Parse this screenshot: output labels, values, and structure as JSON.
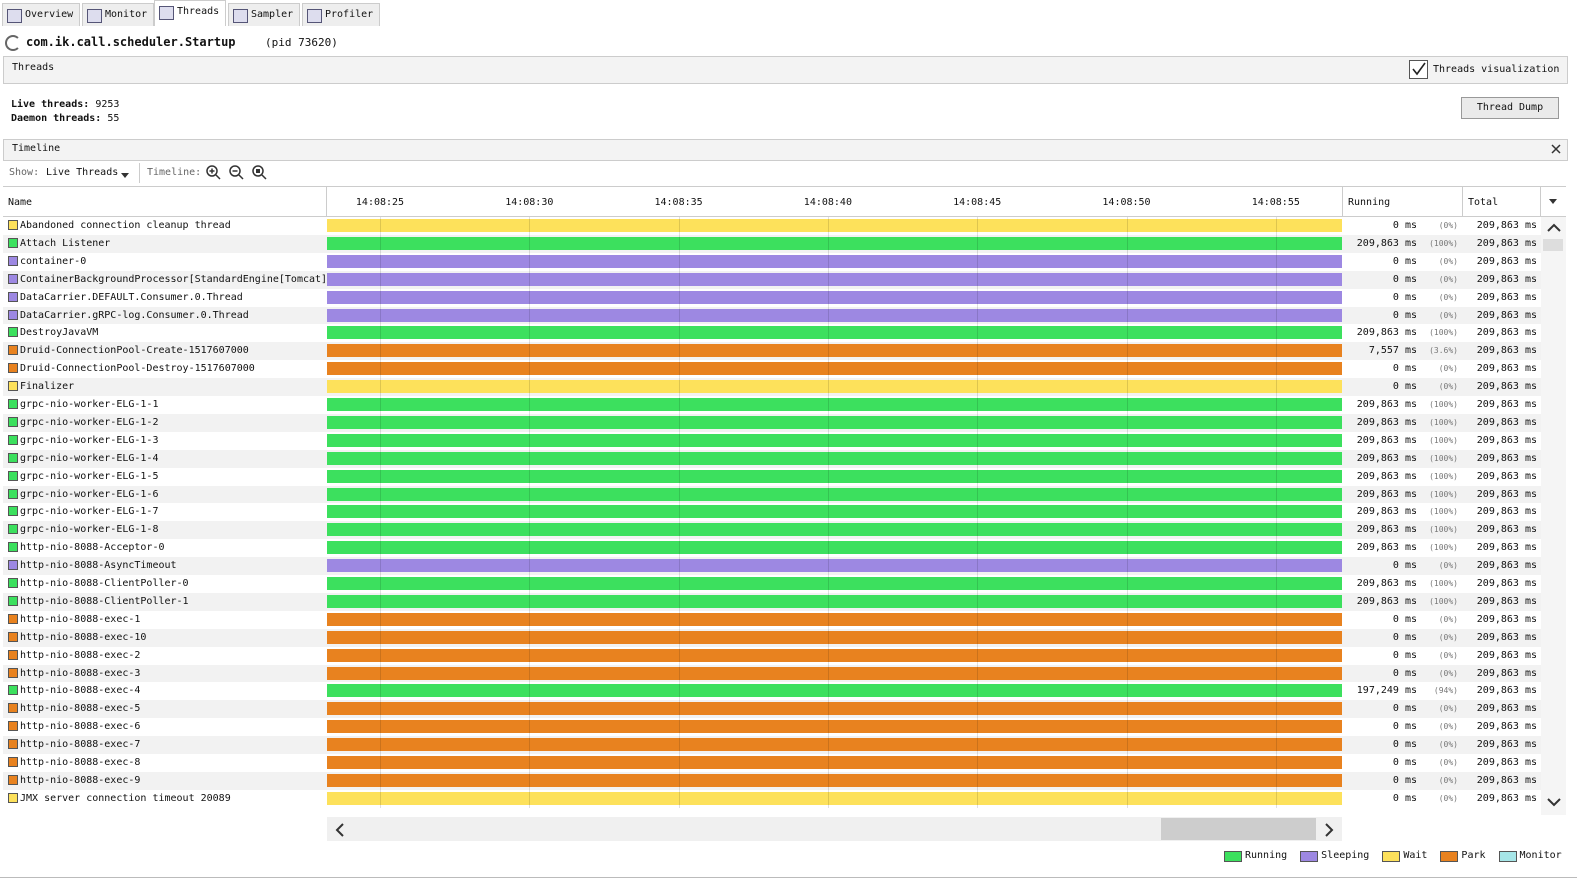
{
  "tabs": [
    "Overview",
    "Monitor",
    "Threads",
    "Sampler",
    "Profiler"
  ],
  "active_tab": "Threads",
  "app": {
    "name": "com.ik.call.scheduler.Startup",
    "pid": "(pid 73620)"
  },
  "threads_panel": {
    "title": "Threads",
    "visualization_label": "Threads visualization",
    "visualization_checked": true,
    "live_label": "Live threads:",
    "live_value": "9253",
    "daemon_label": "Daemon threads:",
    "daemon_value": "55",
    "dump_button": "Thread Dump"
  },
  "timeline": {
    "title": "Timeline",
    "show_label": "Show:",
    "show_value": "Live Threads",
    "timeline_label": "Timeline:",
    "columns": {
      "name": "Name",
      "running": "Running",
      "total": "Total"
    },
    "ticks": [
      "14:08:25",
      "14:08:30",
      "14:08:35",
      "14:08:40",
      "14:08:45",
      "14:08:50",
      "14:08:55"
    ],
    "rows": [
      {
        "name": "Abandoned connection cleanup thread",
        "state": "Wait",
        "running": "0 ms",
        "running_pct": "(0%)",
        "total": "209,863 ms"
      },
      {
        "name": "Attach Listener",
        "state": "Running",
        "running": "209,863 ms",
        "running_pct": "(100%)",
        "total": "209,863 ms"
      },
      {
        "name": "container-0",
        "state": "Sleeping",
        "running": "0 ms",
        "running_pct": "(0%)",
        "total": "209,863 ms"
      },
      {
        "name": "ContainerBackgroundProcessor[StandardEngine[Tomcat]]",
        "state": "Sleeping",
        "running": "0 ms",
        "running_pct": "(0%)",
        "total": "209,863 ms"
      },
      {
        "name": "DataCarrier.DEFAULT.Consumer.0.Thread",
        "state": "Sleeping",
        "running": "0 ms",
        "running_pct": "(0%)",
        "total": "209,863 ms"
      },
      {
        "name": "DataCarrier.gRPC-log.Consumer.0.Thread",
        "state": "Sleeping",
        "running": "0 ms",
        "running_pct": "(0%)",
        "total": "209,863 ms"
      },
      {
        "name": "DestroyJavaVM",
        "state": "Running",
        "running": "209,863 ms",
        "running_pct": "(100%)",
        "total": "209,863 ms"
      },
      {
        "name": "Druid-ConnectionPool-Create-1517607000",
        "state": "Park",
        "running": "7,557 ms",
        "running_pct": "(3.6%)",
        "total": "209,863 ms"
      },
      {
        "name": "Druid-ConnectionPool-Destroy-1517607000",
        "state": "Park",
        "running": "0 ms",
        "running_pct": "(0%)",
        "total": "209,863 ms"
      },
      {
        "name": "Finalizer",
        "state": "Wait",
        "running": "0 ms",
        "running_pct": "(0%)",
        "total": "209,863 ms"
      },
      {
        "name": "grpc-nio-worker-ELG-1-1",
        "state": "Running",
        "running": "209,863 ms",
        "running_pct": "(100%)",
        "total": "209,863 ms"
      },
      {
        "name": "grpc-nio-worker-ELG-1-2",
        "state": "Running",
        "running": "209,863 ms",
        "running_pct": "(100%)",
        "total": "209,863 ms"
      },
      {
        "name": "grpc-nio-worker-ELG-1-3",
        "state": "Running",
        "running": "209,863 ms",
        "running_pct": "(100%)",
        "total": "209,863 ms"
      },
      {
        "name": "grpc-nio-worker-ELG-1-4",
        "state": "Running",
        "running": "209,863 ms",
        "running_pct": "(100%)",
        "total": "209,863 ms"
      },
      {
        "name": "grpc-nio-worker-ELG-1-5",
        "state": "Running",
        "running": "209,863 ms",
        "running_pct": "(100%)",
        "total": "209,863 ms"
      },
      {
        "name": "grpc-nio-worker-ELG-1-6",
        "state": "Running",
        "running": "209,863 ms",
        "running_pct": "(100%)",
        "total": "209,863 ms"
      },
      {
        "name": "grpc-nio-worker-ELG-1-7",
        "state": "Running",
        "running": "209,863 ms",
        "running_pct": "(100%)",
        "total": "209,863 ms"
      },
      {
        "name": "grpc-nio-worker-ELG-1-8",
        "state": "Running",
        "running": "209,863 ms",
        "running_pct": "(100%)",
        "total": "209,863 ms"
      },
      {
        "name": "http-nio-8088-Acceptor-0",
        "state": "Running",
        "running": "209,863 ms",
        "running_pct": "(100%)",
        "total": "209,863 ms"
      },
      {
        "name": "http-nio-8088-AsyncTimeout",
        "state": "Sleeping",
        "running": "0 ms",
        "running_pct": "(0%)",
        "total": "209,863 ms"
      },
      {
        "name": "http-nio-8088-ClientPoller-0",
        "state": "Running",
        "running": "209,863 ms",
        "running_pct": "(100%)",
        "total": "209,863 ms"
      },
      {
        "name": "http-nio-8088-ClientPoller-1",
        "state": "Running",
        "running": "209,863 ms",
        "running_pct": "(100%)",
        "total": "209,863 ms"
      },
      {
        "name": "http-nio-8088-exec-1",
        "state": "Park",
        "running": "0 ms",
        "running_pct": "(0%)",
        "total": "209,863 ms"
      },
      {
        "name": "http-nio-8088-exec-10",
        "state": "Park",
        "running": "0 ms",
        "running_pct": "(0%)",
        "total": "209,863 ms"
      },
      {
        "name": "http-nio-8088-exec-2",
        "state": "Park",
        "running": "0 ms",
        "running_pct": "(0%)",
        "total": "209,863 ms"
      },
      {
        "name": "http-nio-8088-exec-3",
        "state": "Park",
        "running": "0 ms",
        "running_pct": "(0%)",
        "total": "209,863 ms"
      },
      {
        "name": "http-nio-8088-exec-4",
        "state": "Running",
        "running": "197,249 ms",
        "running_pct": "(94%)",
        "total": "209,863 ms"
      },
      {
        "name": "http-nio-8088-exec-5",
        "state": "Park",
        "running": "0 ms",
        "running_pct": "(0%)",
        "total": "209,863 ms"
      },
      {
        "name": "http-nio-8088-exec-6",
        "state": "Park",
        "running": "0 ms",
        "running_pct": "(0%)",
        "total": "209,863 ms"
      },
      {
        "name": "http-nio-8088-exec-7",
        "state": "Park",
        "running": "0 ms",
        "running_pct": "(0%)",
        "total": "209,863 ms"
      },
      {
        "name": "http-nio-8088-exec-8",
        "state": "Park",
        "running": "0 ms",
        "running_pct": "(0%)",
        "total": "209,863 ms"
      },
      {
        "name": "http-nio-8088-exec-9",
        "state": "Park",
        "running": "0 ms",
        "running_pct": "(0%)",
        "total": "209,863 ms"
      },
      {
        "name": "JMX server connection timeout 20089",
        "state": "Wait",
        "running": "0 ms",
        "running_pct": "(0%)",
        "total": "209,863 ms"
      }
    ],
    "legend": [
      {
        "name": "Running",
        "color": "#3ce05e"
      },
      {
        "name": "Sleeping",
        "color": "#9d88e2"
      },
      {
        "name": "Wait",
        "color": "#fde15b"
      },
      {
        "name": "Park",
        "color": "#e8821f"
      },
      {
        "name": "Monitor",
        "color": "#a6e6e8"
      }
    ]
  }
}
